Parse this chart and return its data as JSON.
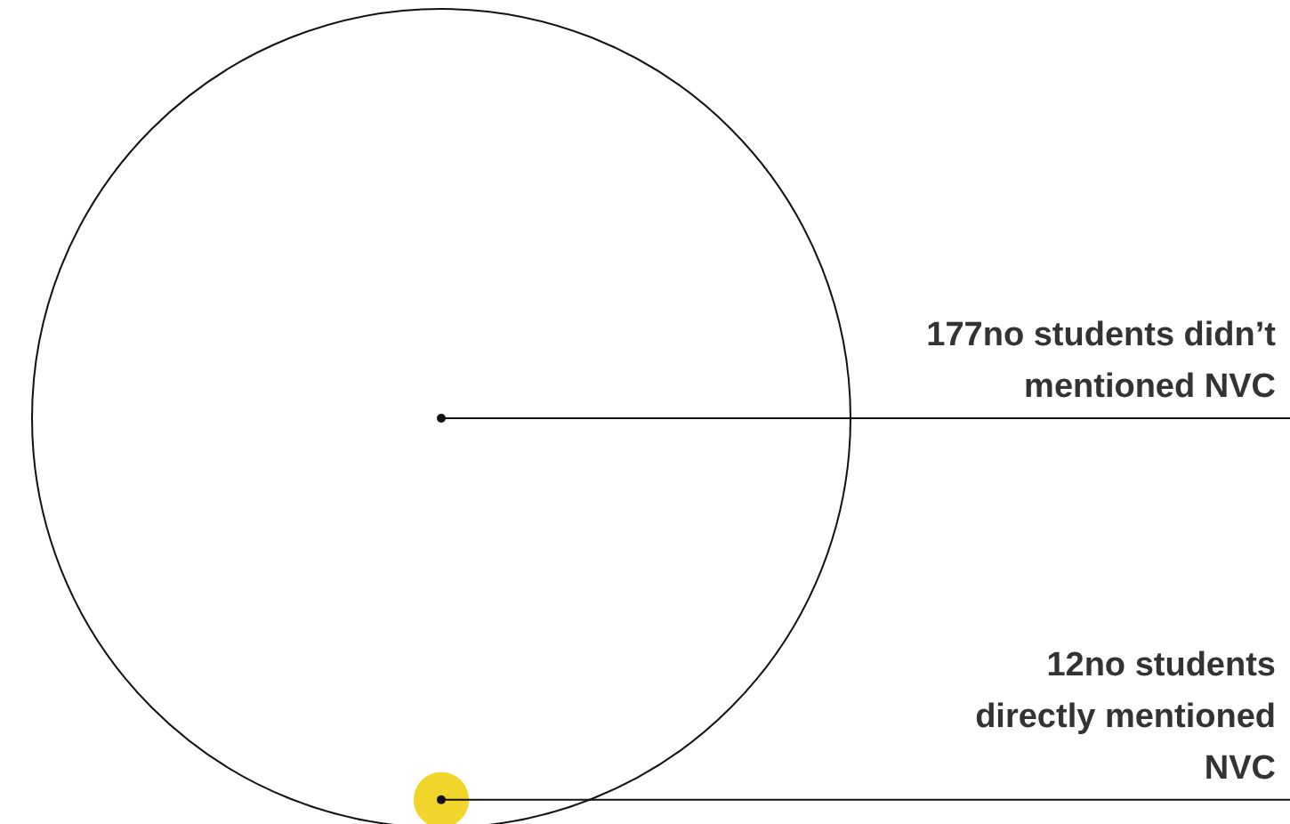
{
  "chart_data": {
    "type": "other",
    "categories": [
      "students didn’t mentioned NVC",
      "students directly mentioned NVC"
    ],
    "value_labels": [
      "177no",
      "12no"
    ],
    "values": [
      177,
      12
    ],
    "colors": [
      "#ffffff",
      "#f2d52a"
    ]
  }
}
